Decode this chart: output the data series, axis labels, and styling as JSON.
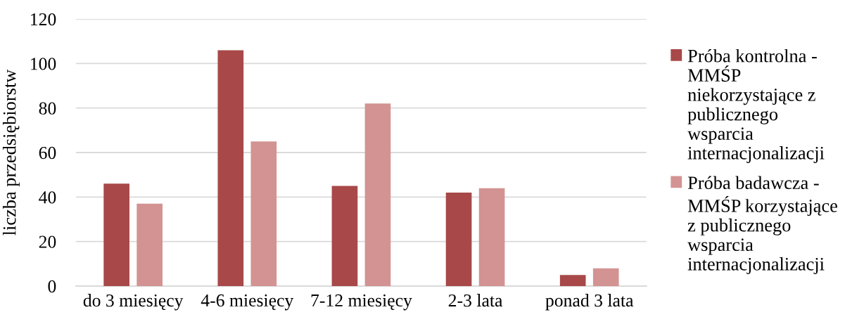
{
  "chart_data": {
    "type": "bar",
    "ylabel": "liczba przedsiębiorstw",
    "categories": [
      "do 3 miesięcy",
      "4-6 miesięcy",
      "7-12 miesięcy",
      "2-3 lata",
      "ponad 3 lata"
    ],
    "series": [
      {
        "name": "Próba kontrolna - MMŚP niekorzystające z publicznego wsparcia internacjonalizacji",
        "color": "#a84848",
        "values": [
          46,
          106,
          45,
          42,
          5
        ]
      },
      {
        "name": "Próba badawcza - MMŚP korzystające z publicznego wsparcia internacjonalizacji",
        "color": "#d39393",
        "values": [
          37,
          65,
          82,
          44,
          8
        ]
      }
    ],
    "ylim": [
      0,
      120
    ],
    "yticks": [
      0,
      20,
      40,
      60,
      80,
      100,
      120
    ],
    "grid": "y",
    "legend": "right"
  }
}
